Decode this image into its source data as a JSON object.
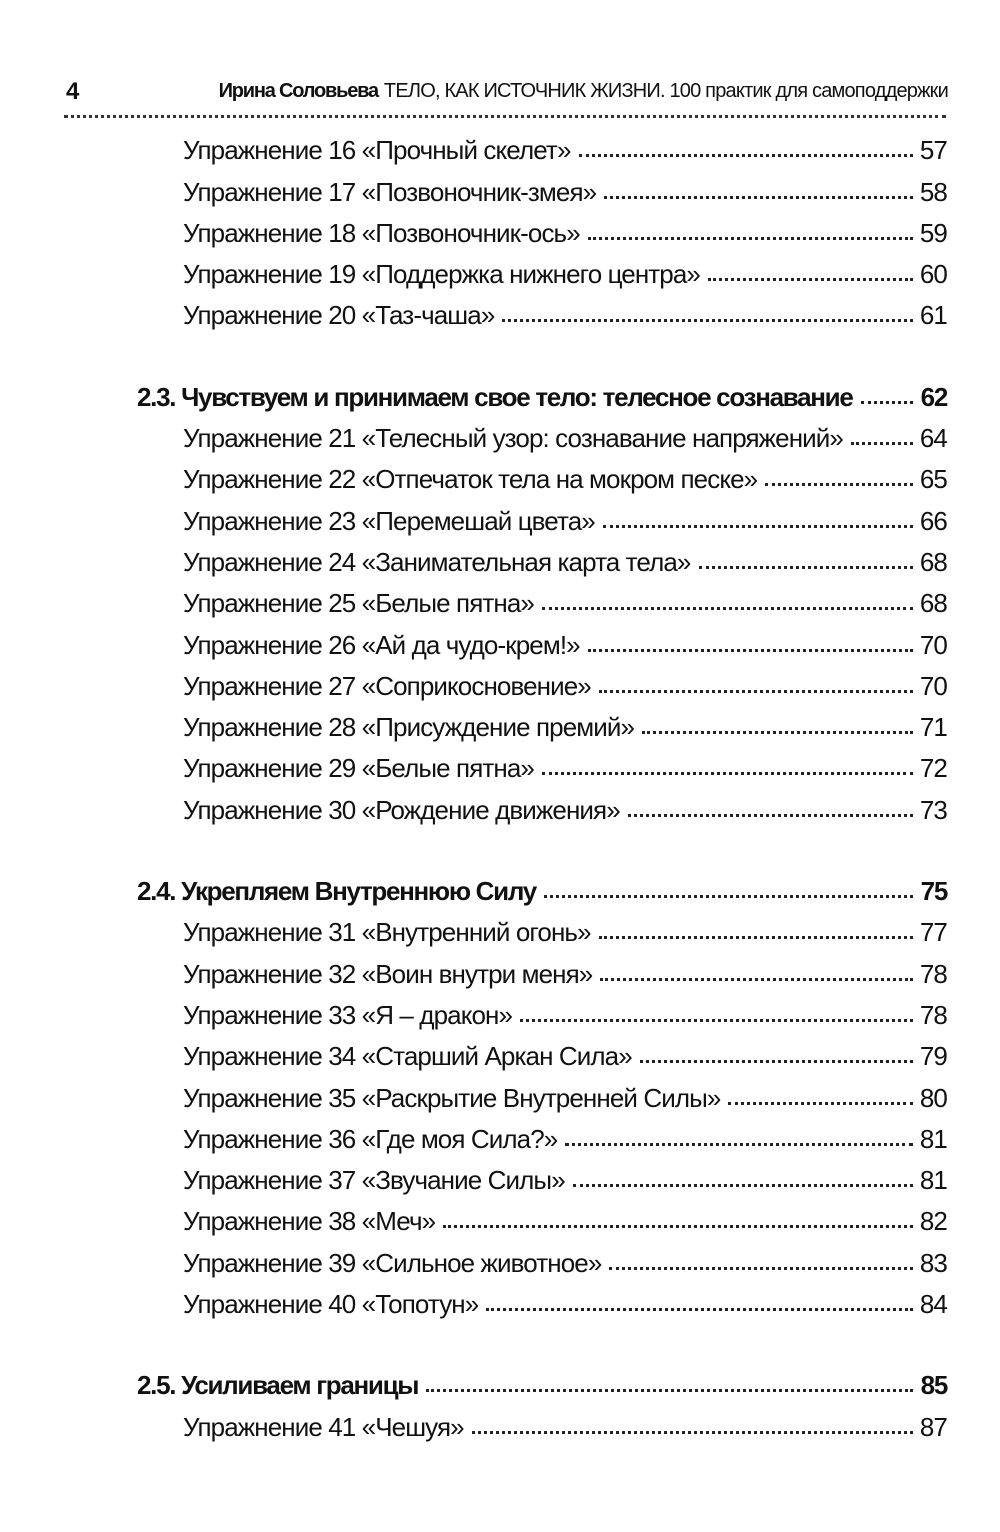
{
  "header": {
    "page_number": "4",
    "author": "Ирина Соловьева",
    "book_title": "ТЕЛО, КАК ИСТОЧНИК ЖИЗНИ. 100 практик для самоподдержки"
  },
  "groups": [
    {
      "section": null,
      "items": [
        {
          "title": "Упражнение 16 «Прочный скелет»",
          "page": "57"
        },
        {
          "title": "Упражнение 17 «Позвоночник-змея»",
          "page": "58"
        },
        {
          "title": "Упражнение 18 «Позвоночник-ось»",
          "page": "59"
        },
        {
          "title": "Упражнение 19 «Поддержка нижнего центра»",
          "page": "60"
        },
        {
          "title": "Упражнение 20 «Таз-чаша»",
          "page": "61"
        }
      ]
    },
    {
      "section": {
        "title": "2.3. Чувствуем и принимаем свое тело: телесное сознавание",
        "page": "62"
      },
      "items": [
        {
          "title": "Упражнение 21 «Телесный узор: сознавание напряжений»",
          "page": "64"
        },
        {
          "title": "Упражнение 22 «Отпечаток тела на мокром песке»",
          "page": "65"
        },
        {
          "title": "Упражнение 23 «Перемешай цвета»",
          "page": "66"
        },
        {
          "title": "Упражнение 24 «Занимательная карта тела»",
          "page": "68"
        },
        {
          "title": "Упражнение 25 «Белые пятна»",
          "page": "68"
        },
        {
          "title": "Упражнение 26 «Ай да чудо-крем!»",
          "page": "70"
        },
        {
          "title": "Упражнение 27 «Соприкосновение»",
          "page": "70"
        },
        {
          "title": "Упражнение 28 «Присуждение премий»",
          "page": "71"
        },
        {
          "title": "Упражнение 29 «Белые пятна»",
          "page": "72"
        },
        {
          "title": "Упражнение 30 «Рождение движения»",
          "page": "73"
        }
      ]
    },
    {
      "section": {
        "title": "2.4. Укрепляем Внутреннюю Силу",
        "page": "75"
      },
      "items": [
        {
          "title": "Упражнение 31 «Внутренний огонь»",
          "page": "77"
        },
        {
          "title": "Упражнение 32 «Воин внутри меня»",
          "page": "78"
        },
        {
          "title": "Упражнение 33 «Я – дракон»",
          "page": "78"
        },
        {
          "title": "Упражнение 34 «Старший Аркан Сила»",
          "page": "79"
        },
        {
          "title": "Упражнение 35 «Раскрытие Внутренней Силы»",
          "page": "80"
        },
        {
          "title": "Упражнение 36 «Где моя Сила?»",
          "page": "81"
        },
        {
          "title": "Упражнение 37 «Звучание Силы»",
          "page": "81"
        },
        {
          "title": "Упражнение 38 «Меч»",
          "page": "82"
        },
        {
          "title": "Упражнение 39 «Сильное животное»",
          "page": "83"
        },
        {
          "title": "Упражнение 40 «Топотун»",
          "page": "84"
        }
      ]
    },
    {
      "section": {
        "title": "2.5. Усиливаем границы",
        "page": "85"
      },
      "items": [
        {
          "title": "Упражнение 41 «Чешуя»",
          "page": "87"
        }
      ]
    }
  ]
}
